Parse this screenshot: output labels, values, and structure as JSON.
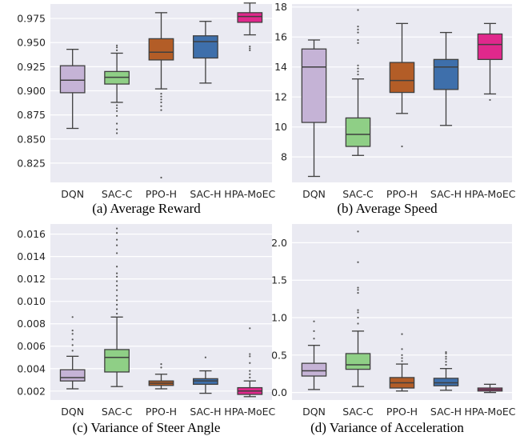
{
  "chart_data": [
    {
      "type": "box",
      "title": "(a) Average Reward",
      "categories": [
        "DQN",
        "SAC-C",
        "PPO-H",
        "SAC-H",
        "HPA-MoEC"
      ],
      "ylim": [
        0.805,
        0.99
      ],
      "yticks": [
        0.825,
        0.85,
        0.875,
        0.9,
        0.925,
        0.95,
        0.975
      ],
      "ytick_labels": [
        "0.825",
        "0.850",
        "0.875",
        "0.900",
        "0.925",
        "0.950",
        "0.975"
      ],
      "grid": true,
      "boxes": [
        {
          "category": "DQN",
          "whislo": 0.861,
          "q1": 0.898,
          "med": 0.911,
          "q3": 0.926,
          "whishi": 0.943,
          "fliers": []
        },
        {
          "category": "SAC-C",
          "whislo": 0.888,
          "q1": 0.907,
          "med": 0.914,
          "q3": 0.92,
          "whishi": 0.939,
          "fliers": [
            0.856,
            0.86,
            0.866,
            0.874,
            0.879,
            0.882,
            0.885,
            0.942,
            0.945,
            0.947
          ]
        },
        {
          "category": "PPO-H",
          "whislo": 0.902,
          "q1": 0.932,
          "med": 0.94,
          "q3": 0.954,
          "whishi": 0.981,
          "fliers": [
            0.81,
            0.88,
            0.884,
            0.888,
            0.891,
            0.894,
            0.897
          ]
        },
        {
          "category": "SAC-H",
          "whislo": 0.908,
          "q1": 0.934,
          "med": 0.951,
          "q3": 0.957,
          "whishi": 0.972,
          "fliers": []
        },
        {
          "category": "HPA-MoEC",
          "whislo": 0.958,
          "q1": 0.971,
          "med": 0.977,
          "q3": 0.981,
          "whishi": 0.991,
          "fliers": [
            0.942,
            0.944,
            0.946
          ]
        }
      ]
    },
    {
      "type": "box",
      "title": "(b) Average Speed",
      "categories": [
        "DQN",
        "SAC-C",
        "PPO-H",
        "SAC-H",
        "HPA-MoEC"
      ],
      "ylim": [
        6.3,
        18.2
      ],
      "yticks": [
        8,
        10,
        12,
        14,
        16,
        18
      ],
      "ytick_labels": [
        "8",
        "10",
        "12",
        "14",
        "16",
        "18"
      ],
      "grid": true,
      "boxes": [
        {
          "category": "DQN",
          "whislo": 6.7,
          "q1": 10.3,
          "med": 14.0,
          "q3": 15.2,
          "whishi": 15.8,
          "fliers": []
        },
        {
          "category": "SAC-C",
          "whislo": 8.1,
          "q1": 8.7,
          "med": 9.5,
          "q3": 10.6,
          "whishi": 13.2,
          "fliers": [
            13.5,
            13.7,
            13.9,
            14.1,
            15.6,
            15.8,
            16.3,
            16.5,
            16.7,
            17.8
          ]
        },
        {
          "category": "PPO-H",
          "whislo": 10.9,
          "q1": 12.3,
          "med": 13.1,
          "q3": 14.3,
          "whishi": 16.9,
          "fliers": [
            8.7
          ]
        },
        {
          "category": "SAC-H",
          "whislo": 10.1,
          "q1": 12.5,
          "med": 14.0,
          "q3": 14.5,
          "whishi": 16.3,
          "fliers": []
        },
        {
          "category": "HPA-MoEC",
          "whislo": 12.2,
          "q1": 14.5,
          "med": 15.5,
          "q3": 16.2,
          "whishi": 16.9,
          "fliers": [
            11.8
          ]
        }
      ]
    },
    {
      "type": "box",
      "title": "(c) Variance of Steer Angle",
      "categories": [
        "DQN",
        "SAC-C",
        "PPO-H",
        "SAC-H",
        "HPA-MoEC"
      ],
      "ylim": [
        0.0012,
        0.0169
      ],
      "yticks": [
        0.002,
        0.004,
        0.006,
        0.008,
        0.01,
        0.012,
        0.014,
        0.016
      ],
      "ytick_labels": [
        "0.002",
        "0.004",
        "0.006",
        "0.008",
        "0.010",
        "0.012",
        "0.014",
        "0.016"
      ],
      "grid": true,
      "boxes": [
        {
          "category": "DQN",
          "whislo": 0.0022,
          "q1": 0.0029,
          "med": 0.0032,
          "q3": 0.0039,
          "whishi": 0.0051,
          "fliers": [
            0.0056,
            0.0061,
            0.0066,
            0.0071,
            0.0074,
            0.0086
          ]
        },
        {
          "category": "SAC-C",
          "whislo": 0.0024,
          "q1": 0.0037,
          "med": 0.005,
          "q3": 0.0057,
          "whishi": 0.0086,
          "fliers": [
            0.0089,
            0.0093,
            0.0097,
            0.0101,
            0.0105,
            0.011,
            0.0114,
            0.0118,
            0.0122,
            0.0125,
            0.0131,
            0.0143,
            0.015,
            0.0155,
            0.0161,
            0.0165
          ]
        },
        {
          "category": "PPO-H",
          "whislo": 0.0022,
          "q1": 0.0025,
          "med": 0.0027,
          "q3": 0.0029,
          "whishi": 0.0035,
          "fliers": [
            0.0041,
            0.0044
          ]
        },
        {
          "category": "SAC-H",
          "whislo": 0.0018,
          "q1": 0.0026,
          "med": 0.0029,
          "q3": 0.0031,
          "whishi": 0.0038,
          "fliers": [
            0.005
          ]
        },
        {
          "category": "HPA-MoEC",
          "whislo": 0.0015,
          "q1": 0.0017,
          "med": 0.002,
          "q3": 0.0023,
          "whishi": 0.0029,
          "fliers": [
            0.0032,
            0.0035,
            0.0038,
            0.0045,
            0.0051,
            0.0053,
            0.0076
          ]
        }
      ]
    },
    {
      "type": "box",
      "title": "(d) Variance of Acceleration",
      "categories": [
        "DQN",
        "SAC-C",
        "PPO-H",
        "SAC-H",
        "HPA-MoEC"
      ],
      "ylim": [
        -0.1,
        2.25
      ],
      "yticks": [
        0.0,
        0.5,
        1.0,
        1.5,
        2.0
      ],
      "ytick_labels": [
        "0.0",
        "0.5",
        "1.0",
        "1.5",
        "2.0"
      ],
      "grid": true,
      "boxes": [
        {
          "category": "DQN",
          "whislo": 0.04,
          "q1": 0.22,
          "med": 0.29,
          "q3": 0.39,
          "whishi": 0.63,
          "fliers": [
            0.72,
            0.82,
            0.95
          ]
        },
        {
          "category": "SAC-C",
          "whislo": 0.08,
          "q1": 0.31,
          "med": 0.37,
          "q3": 0.52,
          "whishi": 0.82,
          "fliers": [
            0.92,
            1.0,
            1.07,
            1.1,
            1.33,
            1.37,
            1.4,
            1.74,
            2.15
          ]
        },
        {
          "category": "PPO-H",
          "whislo": 0.02,
          "q1": 0.06,
          "med": 0.13,
          "q3": 0.2,
          "whishi": 0.38,
          "fliers": [
            0.42,
            0.46,
            0.5,
            0.58,
            0.78
          ]
        },
        {
          "category": "SAC-H",
          "whislo": 0.03,
          "q1": 0.09,
          "med": 0.13,
          "q3": 0.19,
          "whishi": 0.32,
          "fliers": [
            0.37,
            0.41,
            0.45,
            0.48,
            0.52,
            0.54
          ]
        },
        {
          "category": "HPA-MoEC",
          "whislo": 0.0,
          "q1": 0.02,
          "med": 0.04,
          "q3": 0.06,
          "whishi": 0.11,
          "fliers": []
        }
      ]
    }
  ],
  "colors": {
    "DQN": "#c5b3d6",
    "SAC-C": "#8fcf86",
    "PPO-H": "#b35d27",
    "SAC-H": "#3e6fab",
    "HPA-MoEC": "#e0288c",
    "plot_background": "#eaeaf2",
    "grid": "#ffffff",
    "whisker": "#3f3f3f",
    "median": "#3f3f3f"
  }
}
